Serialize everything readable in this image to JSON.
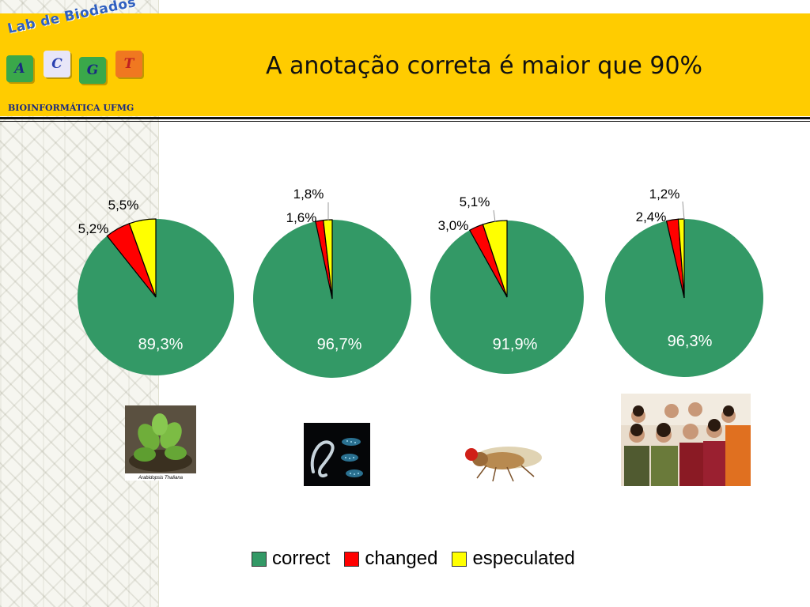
{
  "slide": {
    "title": "A anotação correta é maior que 90%"
  },
  "logo": {
    "title": "Lab de Biodados",
    "subtitle": "BIOINFORMÁTICA UFMG",
    "letters": [
      "A",
      "C",
      "G",
      "T"
    ],
    "colors": [
      "#3aa84a",
      "#e8e6f8",
      "#3aa84a",
      "#f07820"
    ]
  },
  "colors": {
    "correct": "#339966",
    "changed": "#ff0000",
    "especulated": "#ffff00"
  },
  "legend": {
    "correct": "correct",
    "changed": "changed",
    "especulated": "especulated"
  },
  "photos": {
    "arabidopsis_caption": "Arabidopsis Thaliana"
  },
  "chart_data": [
    {
      "type": "pie",
      "categories": [
        "correct",
        "changed",
        "especulated"
      ],
      "values": [
        89.3,
        5.2,
        5.5
      ],
      "labels": [
        "89,3%",
        "5,2%",
        "5,5%"
      ]
    },
    {
      "type": "pie",
      "categories": [
        "correct",
        "changed",
        "especulated"
      ],
      "values": [
        96.7,
        1.6,
        1.8
      ],
      "labels": [
        "96,7%",
        "1,6%",
        "1,8%"
      ]
    },
    {
      "type": "pie",
      "categories": [
        "correct",
        "changed",
        "especulated"
      ],
      "values": [
        91.9,
        3.0,
        5.1
      ],
      "labels": [
        "91,9%",
        "3,0%",
        "5,1%"
      ]
    },
    {
      "type": "pie",
      "categories": [
        "correct",
        "changed",
        "especulated"
      ],
      "values": [
        96.3,
        2.4,
        1.2
      ],
      "labels": [
        "96,3%",
        "2,4%",
        "1,2%"
      ]
    }
  ]
}
